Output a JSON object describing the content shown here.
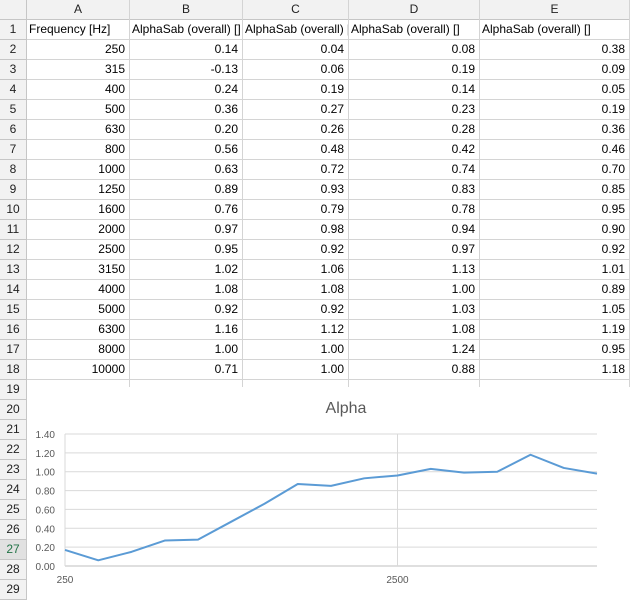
{
  "columns": [
    "A",
    "B",
    "C",
    "D",
    "E"
  ],
  "rows": [
    [
      "Frequency [Hz]",
      "AlphaSab (overall) []",
      "AlphaSab (overall) []",
      "AlphaSab (overall) []",
      "AlphaSab (overall) []"
    ],
    [
      "250",
      "0.14",
      "0.04",
      "0.08",
      "0.38"
    ],
    [
      "315",
      "-0.13",
      "0.06",
      "0.19",
      "0.09"
    ],
    [
      "400",
      "0.24",
      "0.19",
      "0.14",
      "0.05"
    ],
    [
      "500",
      "0.36",
      "0.27",
      "0.23",
      "0.19"
    ],
    [
      "630",
      "0.20",
      "0.26",
      "0.28",
      "0.36"
    ],
    [
      "800",
      "0.56",
      "0.48",
      "0.42",
      "0.46"
    ],
    [
      "1000",
      "0.63",
      "0.72",
      "0.74",
      "0.70"
    ],
    [
      "1250",
      "0.89",
      "0.93",
      "0.83",
      "0.85"
    ],
    [
      "1600",
      "0.76",
      "0.79",
      "0.78",
      "0.95"
    ],
    [
      "2000",
      "0.97",
      "0.98",
      "0.94",
      "0.90"
    ],
    [
      "2500",
      "0.95",
      "0.92",
      "0.97",
      "0.92"
    ],
    [
      "3150",
      "1.02",
      "1.06",
      "1.13",
      "1.01"
    ],
    [
      "4000",
      "1.08",
      "1.08",
      "1.00",
      "0.89"
    ],
    [
      "5000",
      "0.92",
      "0.92",
      "1.03",
      "1.05"
    ],
    [
      "6300",
      "1.16",
      "1.12",
      "1.08",
      "1.19"
    ],
    [
      "8000",
      "1.00",
      "1.00",
      "1.24",
      "0.95"
    ],
    [
      "10000",
      "0.71",
      "1.00",
      "0.88",
      "1.18"
    ]
  ],
  "row_numbers": [
    "1",
    "2",
    "3",
    "4",
    "5",
    "6",
    "7",
    "8",
    "9",
    "10",
    "11",
    "12",
    "13",
    "14",
    "15",
    "16",
    "17",
    "18",
    "19",
    "20",
    "21",
    "22",
    "23",
    "24",
    "25",
    "26",
    "27",
    "28",
    "29"
  ],
  "colors": {
    "line": "#5b9bd5",
    "grid": "#d9d9d9",
    "header_bg": "#f2f2f2",
    "selected_row_header": "#217346"
  },
  "chart_data": {
    "type": "line",
    "title": "Alpha",
    "categories": [
      "250",
      "315",
      "400",
      "500",
      "630",
      "800",
      "1000",
      "1250",
      "1600",
      "2000",
      "2500",
      "3150",
      "4000",
      "5000",
      "6300",
      "8000",
      "10000"
    ],
    "series": [
      {
        "values": [
          0.17,
          0.06,
          0.15,
          0.27,
          0.28,
          0.47,
          0.66,
          0.87,
          0.85,
          0.93,
          0.96,
          1.03,
          0.99,
          1.0,
          1.18,
          1.04,
          0.98
        ]
      }
    ],
    "ylim": [
      0,
      1.4
    ],
    "yticks": [
      "0.00",
      "0.20",
      "0.40",
      "0.60",
      "0.80",
      "1.00",
      "1.20",
      "1.40"
    ],
    "xtick_labels": [
      "250",
      "2500"
    ],
    "xlabel": "",
    "ylabel": "",
    "grid": true
  }
}
